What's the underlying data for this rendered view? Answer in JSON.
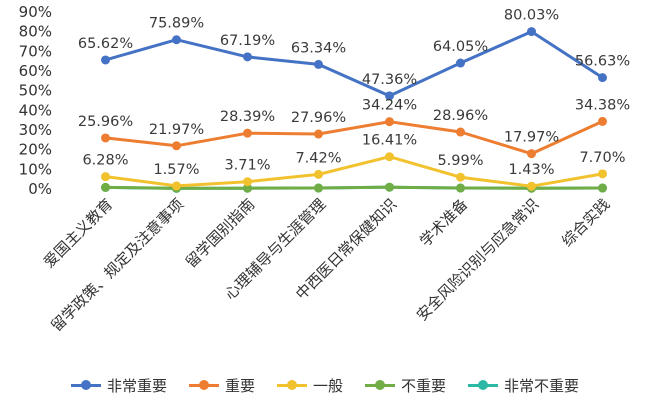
{
  "chart_data": {
    "type": "line",
    "title": "",
    "xlabel": "",
    "ylabel": "",
    "ylim": [
      0,
      90
    ],
    "yticks": [
      "0%",
      "10%",
      "20%",
      "30%",
      "40%",
      "50%",
      "60%",
      "70%",
      "80%",
      "90%"
    ],
    "grid": false,
    "legend_position": "bottom",
    "categories": [
      "爱国主义教育",
      "留学政策、规定及注意事项",
      "留学国别指南",
      "心理辅导与生涯管理",
      "中西医日常保健知识",
      "学术准备",
      "安全风险识别与应急常识",
      "综合实践"
    ],
    "series": [
      {
        "name": "非常重要",
        "color": "#4472C4",
        "values": [
          65.62,
          75.89,
          67.19,
          63.34,
          47.36,
          64.05,
          80.03,
          56.63
        ],
        "labels": [
          "65.62%",
          "75.89%",
          "67.19%",
          "63.34%",
          "47.36%",
          "64.05%",
          "80.03%",
          "56.63%"
        ]
      },
      {
        "name": "重要",
        "color": "#ED7D31",
        "values": [
          25.96,
          21.97,
          28.39,
          27.96,
          34.24,
          28.96,
          17.97,
          34.38
        ],
        "labels": [
          "25.96%",
          "21.97%",
          "28.39%",
          "27.96%",
          "34.24%",
          "28.96%",
          "17.97%",
          "34.38%"
        ]
      },
      {
        "name": "一般",
        "color": "#F2C12E",
        "values": [
          6.28,
          1.57,
          3.71,
          7.42,
          16.41,
          5.99,
          1.43,
          7.7
        ],
        "labels": [
          "6.28%",
          "1.57%",
          "3.71%",
          "7.42%",
          "16.41%",
          "5.99%",
          "1.43%",
          "7.70%"
        ]
      },
      {
        "name": "不重要",
        "color": "#70AD47",
        "values": [
          0.8,
          0.4,
          0.4,
          0.5,
          0.9,
          0.5,
          0.4,
          0.5
        ]
      },
      {
        "name": "非常不重要",
        "color": "#2BB9A5",
        "values": [
          0.8,
          0.3,
          0.4,
          0.5,
          0.9,
          0.5,
          0.4,
          0.5
        ]
      }
    ]
  }
}
